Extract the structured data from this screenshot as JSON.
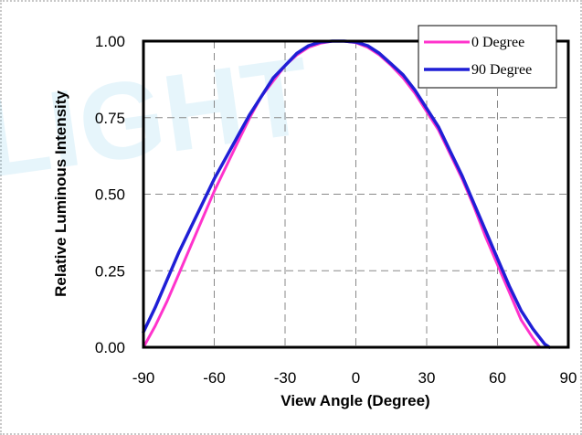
{
  "watermark": {
    "text": "LIGHT"
  },
  "chart_data": {
    "type": "line",
    "xlabel": "View Angle (Degree)",
    "ylabel": "Relative Luminous Intensity",
    "xlim": [
      -90,
      90
    ],
    "ylim": [
      0,
      1
    ],
    "xticks": [
      "-90",
      "-60",
      "-30",
      "0",
      "30",
      "60",
      "90"
    ],
    "yticks": [
      "0.00",
      "0.25",
      "0.50",
      "0.75",
      "1.00"
    ],
    "grid": true,
    "legend_position": "top-right",
    "series": [
      {
        "name": "0 Degree",
        "color": "#ff33cc",
        "x": [
          -90,
          -85,
          -80,
          -75,
          -70,
          -65,
          -60,
          -55,
          -50,
          -45,
          -40,
          -35,
          -30,
          -25,
          -20,
          -15,
          -10,
          -5,
          0,
          5,
          10,
          15,
          20,
          25,
          30,
          35,
          40,
          45,
          50,
          55,
          60,
          65,
          70,
          75,
          78,
          80,
          82
        ],
        "y": [
          0.0,
          0.07,
          0.15,
          0.24,
          0.33,
          0.42,
          0.51,
          0.59,
          0.67,
          0.75,
          0.82,
          0.87,
          0.92,
          0.955,
          0.98,
          0.993,
          1.0,
          1.0,
          0.995,
          0.98,
          0.955,
          0.92,
          0.88,
          0.83,
          0.77,
          0.71,
          0.63,
          0.55,
          0.46,
          0.36,
          0.27,
          0.18,
          0.09,
          0.03,
          0.0,
          0.0,
          0.0
        ]
      },
      {
        "name": "90 Degree",
        "color": "#1f1fd6",
        "x": [
          -90,
          -85,
          -80,
          -75,
          -70,
          -65,
          -60,
          -55,
          -50,
          -45,
          -40,
          -35,
          -30,
          -25,
          -20,
          -15,
          -10,
          -5,
          0,
          5,
          10,
          15,
          20,
          25,
          30,
          35,
          40,
          45,
          50,
          55,
          60,
          65,
          70,
          75,
          80,
          82
        ],
        "y": [
          0.05,
          0.13,
          0.22,
          0.31,
          0.39,
          0.47,
          0.55,
          0.62,
          0.69,
          0.76,
          0.82,
          0.88,
          0.92,
          0.96,
          0.985,
          0.997,
          1.0,
          1.0,
          0.997,
          0.985,
          0.96,
          0.925,
          0.89,
          0.84,
          0.78,
          0.72,
          0.64,
          0.56,
          0.47,
          0.38,
          0.29,
          0.2,
          0.12,
          0.06,
          0.01,
          0.0
        ]
      }
    ]
  }
}
